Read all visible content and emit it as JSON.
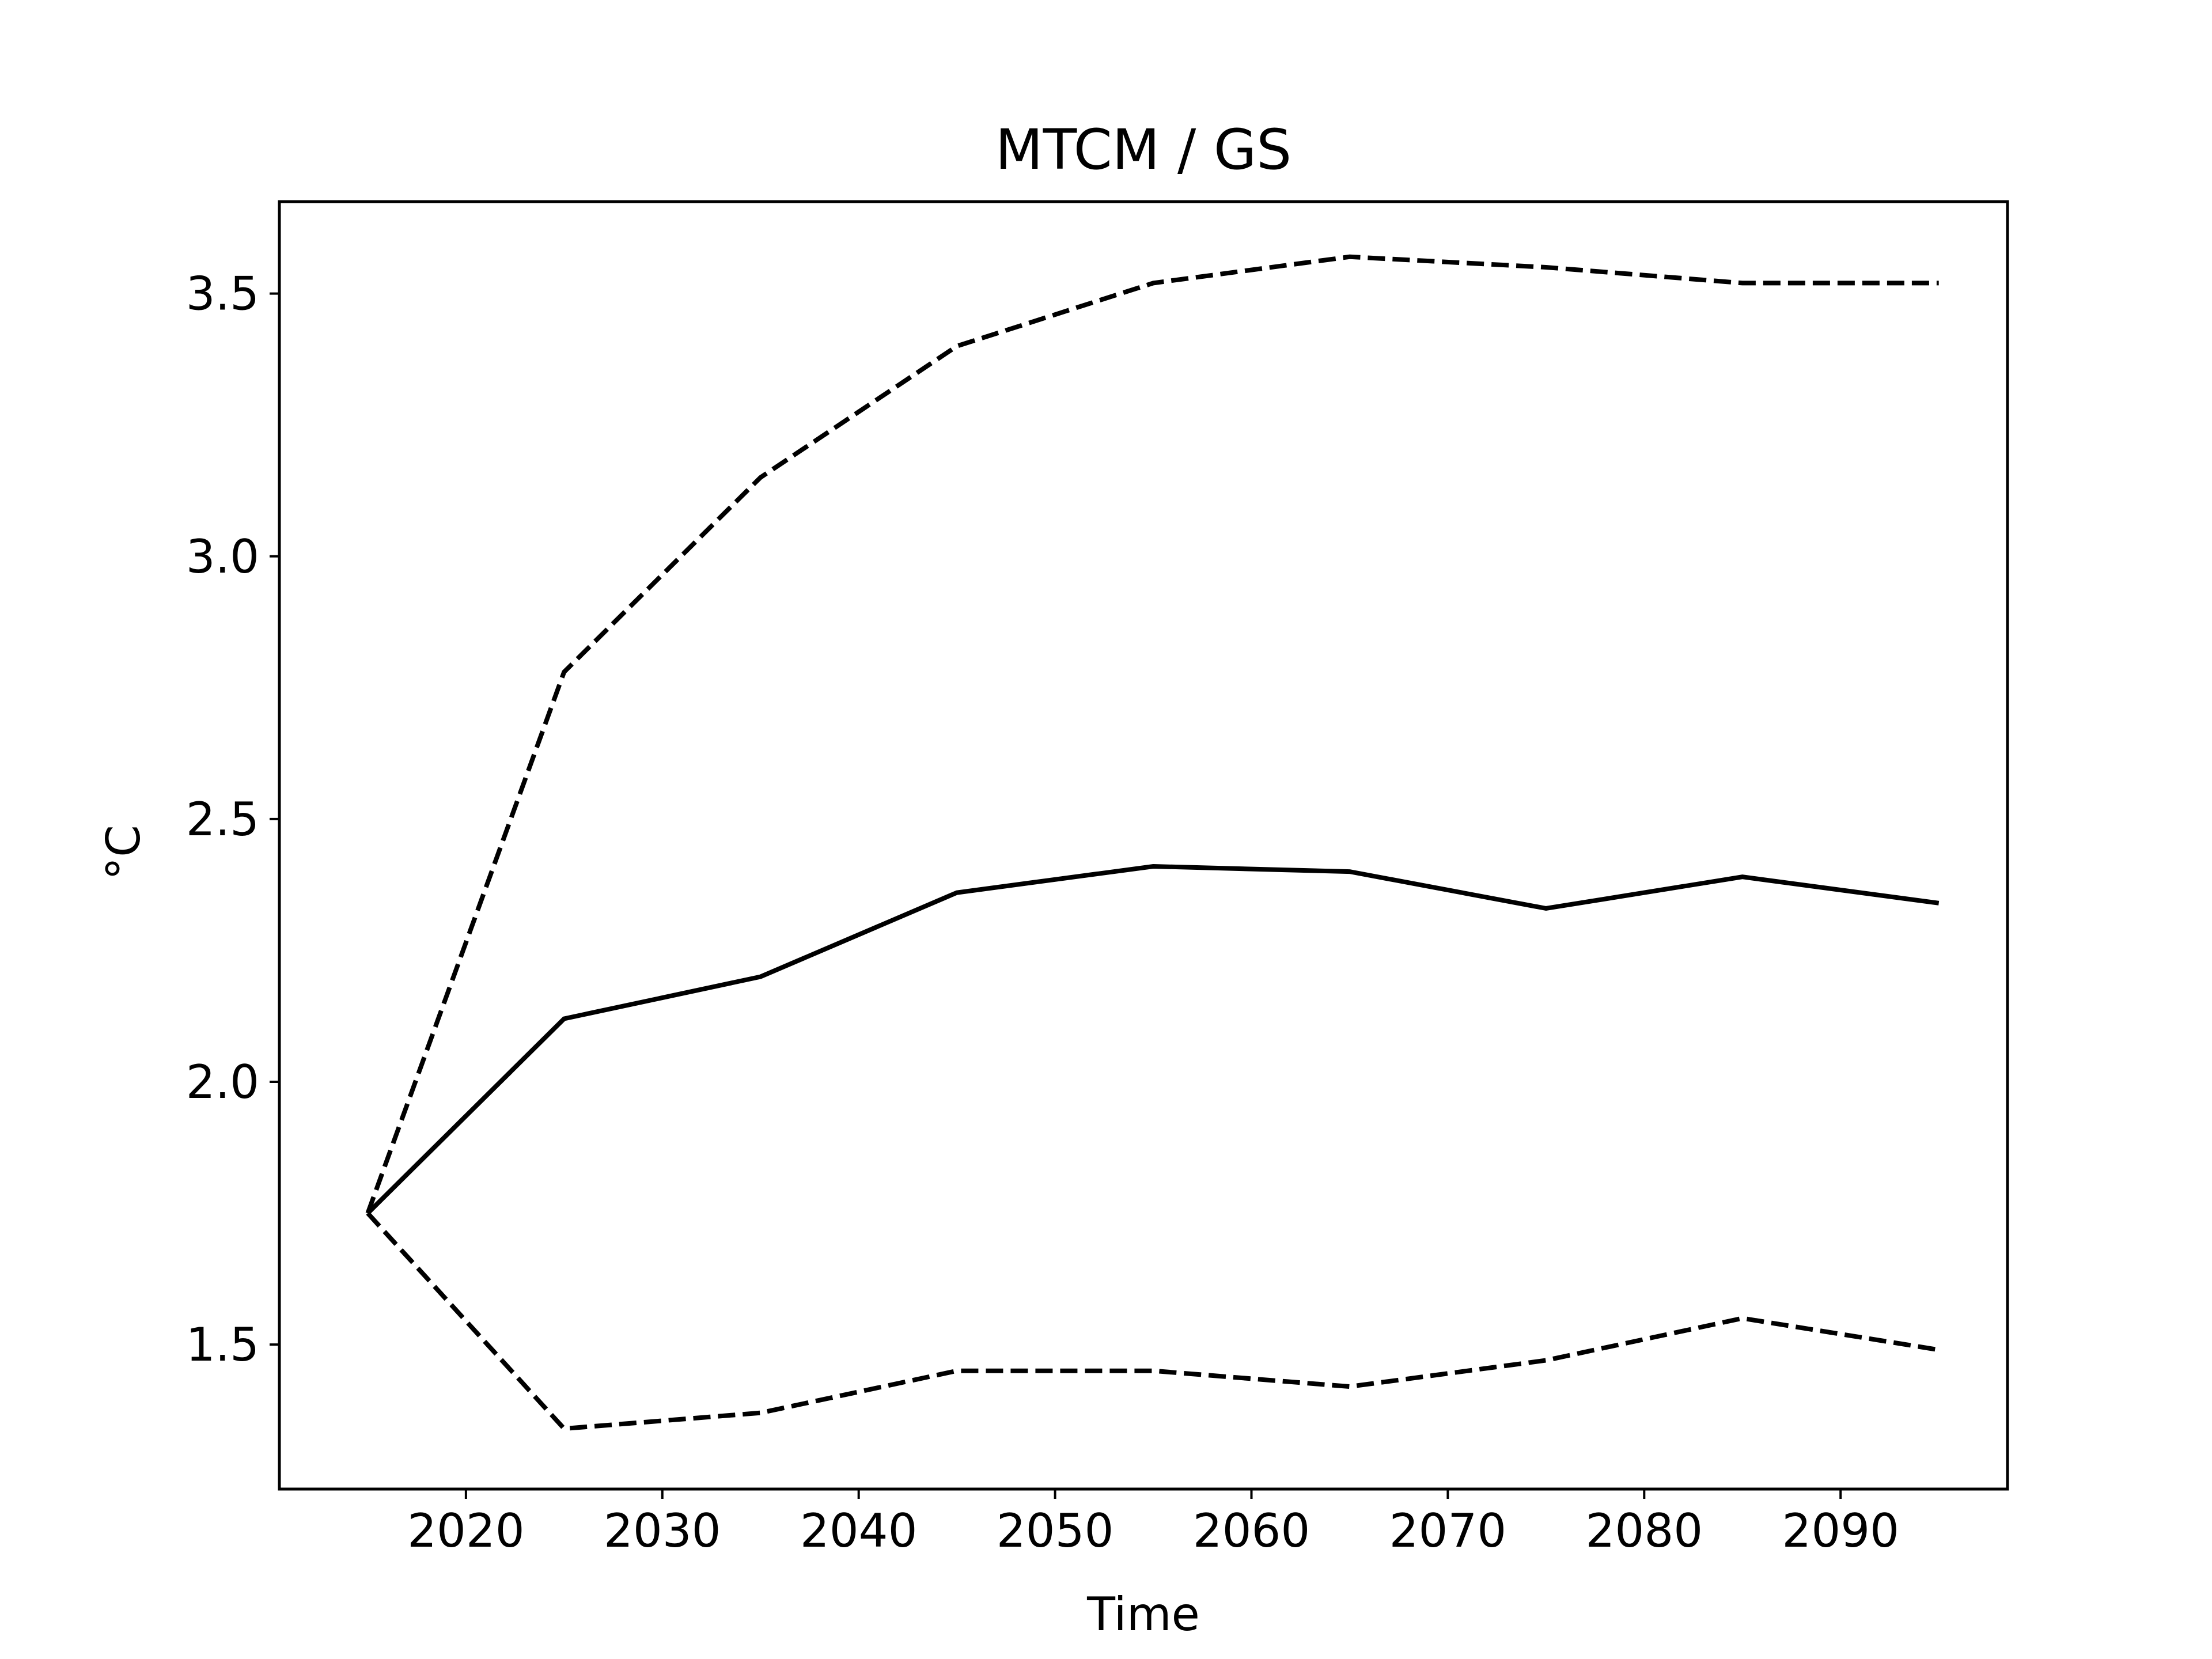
{
  "chart_data": {
    "type": "line",
    "title": "MTCM / GS",
    "xlabel": "Time",
    "ylabel": "°C",
    "xlim": [
      2010.5,
      2098.5
    ],
    "ylim": [
      1.225,
      3.675
    ],
    "x_ticks": [
      2020,
      2030,
      2040,
      2050,
      2060,
      2070,
      2080,
      2090
    ],
    "y_ticks": [
      1.5,
      2.0,
      2.5,
      3.0,
      3.5
    ],
    "y_tick_labels": [
      "1.5",
      "2.0",
      "2.5",
      "3.0",
      "3.5"
    ],
    "grid": false,
    "x": [
      2015,
      2025,
      2035,
      2045,
      2055,
      2065,
      2075,
      2085,
      2095
    ],
    "series": [
      {
        "style": "solid",
        "color": "#000000",
        "values": [
          1.75,
          2.12,
          2.2,
          2.36,
          2.41,
          2.4,
          2.33,
          2.39,
          2.34
        ]
      },
      {
        "style": "dashed",
        "color": "#000000",
        "values": [
          1.75,
          2.78,
          3.15,
          3.4,
          3.52,
          3.57,
          3.55,
          3.52,
          3.52
        ]
      },
      {
        "style": "dashed",
        "color": "#000000",
        "values": [
          1.75,
          1.34,
          1.37,
          1.45,
          1.45,
          1.42,
          1.47,
          1.55,
          1.49
        ]
      }
    ]
  }
}
